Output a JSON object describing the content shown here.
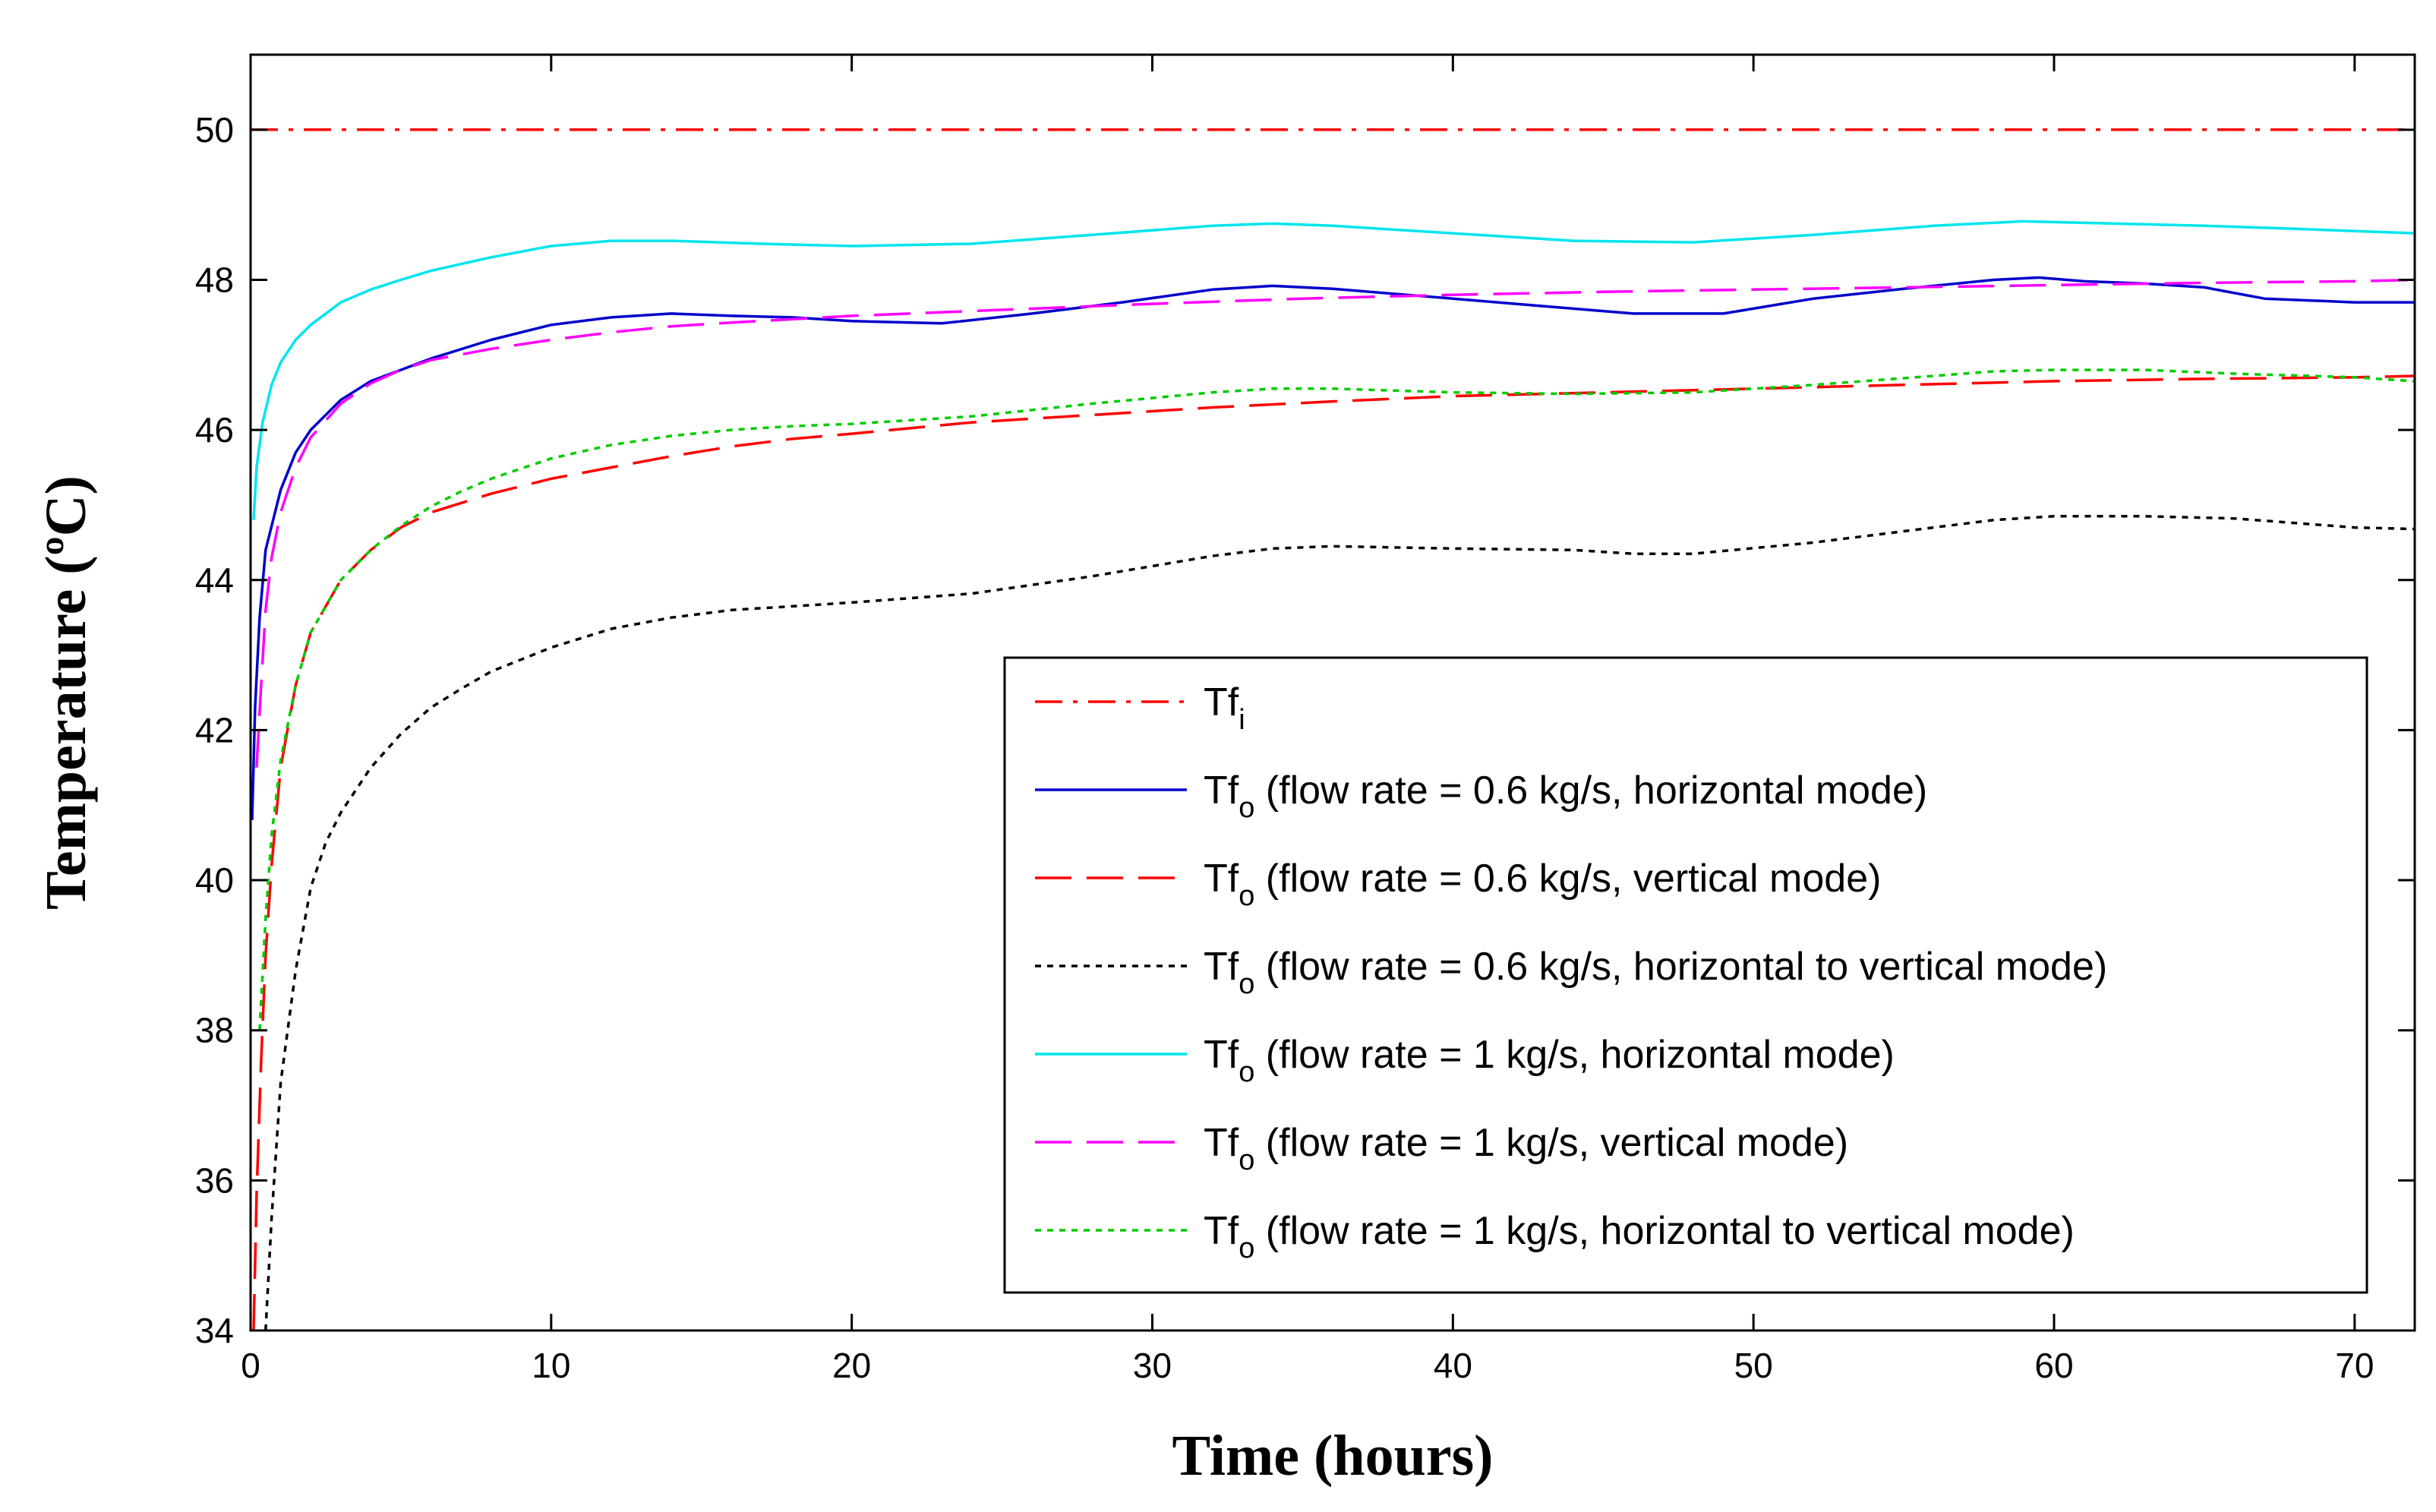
{
  "chart_data": {
    "type": "line",
    "title": "",
    "xlabel": "Time (hours)",
    "ylabel": "Temperature (ºC)",
    "xlim": [
      0,
      72
    ],
    "ylim": [
      34,
      51
    ],
    "xticks": [
      0,
      10,
      20,
      30,
      40,
      50,
      60,
      70
    ],
    "yticks": [
      34,
      36,
      38,
      40,
      42,
      44,
      46,
      48,
      50
    ],
    "grid": false,
    "legend_position": "bottom-right",
    "series": [
      {
        "name": "Tf_i",
        "legend_main": "Tf",
        "legend_sub": "i",
        "legend_rest": "",
        "color": "#ff0000",
        "dash": "dashdot",
        "x": [
          0,
          72
        ],
        "y": [
          50,
          50
        ]
      },
      {
        "name": "Tf_o (flow rate = 0.6 kg/s, horizontal mode)",
        "legend_main": "Tf",
        "legend_sub": "o",
        "legend_rest": " (flow rate = 0.6 kg/s, horizontal mode)",
        "color": "#0000cc",
        "dash": "solid",
        "x": [
          0.05,
          0.15,
          0.3,
          0.5,
          1,
          1.5,
          2,
          3,
          4,
          5,
          6,
          8,
          10,
          12,
          14,
          16,
          18,
          20,
          23,
          26,
          29,
          32,
          34,
          36,
          40,
          43,
          46,
          49,
          52,
          55,
          58,
          59.5,
          61,
          63,
          65,
          67,
          70,
          72
        ],
        "y": [
          40.8,
          42.3,
          43.5,
          44.4,
          45.2,
          45.7,
          46.0,
          46.4,
          46.65,
          46.8,
          46.95,
          47.2,
          47.4,
          47.5,
          47.55,
          47.52,
          47.5,
          47.45,
          47.42,
          47.55,
          47.7,
          47.87,
          47.92,
          47.88,
          47.75,
          47.65,
          47.55,
          47.55,
          47.75,
          47.88,
          48.0,
          48.03,
          47.98,
          47.95,
          47.9,
          47.75,
          47.7,
          47.7
        ]
      },
      {
        "name": "Tf_o (flow rate = 0.6 kg/s, vertical mode)",
        "legend_main": "Tf",
        "legend_sub": "o",
        "legend_rest": " (flow rate = 0.6 kg/s, vertical mode)",
        "color": "#ff0000",
        "dash": "dashed",
        "x": [
          0.1,
          0.2,
          0.35,
          0.5,
          0.7,
          1,
          1.5,
          2,
          3,
          4,
          5,
          6,
          8,
          10,
          12,
          14,
          16,
          18,
          20,
          24,
          28,
          32,
          36,
          40,
          45,
          50,
          55,
          60,
          65,
          70,
          72
        ],
        "y": [
          34.0,
          35.8,
          37.6,
          39.0,
          40.2,
          41.5,
          42.6,
          43.3,
          44.0,
          44.4,
          44.7,
          44.9,
          45.15,
          45.35,
          45.5,
          45.65,
          45.78,
          45.88,
          45.95,
          46.1,
          46.2,
          46.3,
          46.38,
          46.45,
          46.5,
          46.55,
          46.6,
          46.65,
          46.68,
          46.7,
          46.72
        ]
      },
      {
        "name": "Tf_o (flow rate = 0.6 kg/s, horizontal to vertical mode)",
        "legend_main": "Tf",
        "legend_sub": "o",
        "legend_rest": " (flow rate = 0.6 kg/s, horizontal to vertical mode)",
        "color": "#000000",
        "dash": "dotted",
        "x": [
          0.5,
          0.7,
          1,
          1.5,
          2,
          2.5,
          3,
          4,
          5,
          6,
          7,
          8,
          10,
          12,
          14,
          16,
          18,
          20,
          24,
          28,
          32,
          34,
          36,
          40,
          44,
          46,
          48,
          52,
          56,
          58,
          60,
          63,
          66,
          70,
          72
        ],
        "y": [
          34.0,
          35.5,
          37.3,
          38.8,
          39.9,
          40.5,
          40.9,
          41.5,
          41.95,
          42.3,
          42.55,
          42.78,
          43.1,
          43.35,
          43.5,
          43.6,
          43.65,
          43.7,
          43.82,
          44.05,
          44.32,
          44.42,
          44.45,
          44.42,
          44.4,
          44.35,
          44.35,
          44.5,
          44.7,
          44.8,
          44.85,
          44.85,
          44.82,
          44.7,
          44.68
        ]
      },
      {
        "name": "Tf_o (flow rate = 1 kg/s, horizontal mode)",
        "legend_main": "Tf",
        "legend_sub": "o",
        "legend_rest": " (flow rate = 1 kg/s, horizontal mode)",
        "color": "#00e5ee",
        "dash": "solid",
        "x": [
          0.1,
          0.2,
          0.4,
          0.7,
          1,
          1.5,
          2,
          3,
          4,
          5,
          6,
          8,
          10,
          12,
          14,
          17,
          20,
          24,
          28,
          32,
          34,
          36,
          40,
          44,
          48,
          52,
          56,
          59,
          62,
          65,
          68,
          70,
          72
        ],
        "y": [
          44.8,
          45.5,
          46.1,
          46.6,
          46.9,
          47.2,
          47.4,
          47.7,
          47.87,
          48.0,
          48.12,
          48.3,
          48.45,
          48.52,
          48.52,
          48.48,
          48.45,
          48.48,
          48.6,
          48.72,
          48.75,
          48.72,
          48.62,
          48.52,
          48.5,
          48.6,
          48.72,
          48.78,
          48.75,
          48.72,
          48.68,
          48.65,
          48.62
        ]
      },
      {
        "name": "Tf_o (flow rate = 1 kg/s, vertical mode)",
        "legend_main": "Tf",
        "legend_sub": "o",
        "legend_rest": " (flow rate = 1 kg/s, vertical mode)",
        "color": "#ff00ff",
        "dash": "dashed",
        "x": [
          0.2,
          0.35,
          0.5,
          0.7,
          1,
          1.5,
          2,
          3,
          4,
          5,
          6,
          8,
          10,
          12,
          14,
          16,
          20,
          25,
          30,
          35,
          40,
          45,
          50,
          55,
          60,
          65,
          70,
          72
        ],
        "y": [
          41.5,
          42.6,
          43.6,
          44.3,
          44.9,
          45.5,
          45.9,
          46.35,
          46.62,
          46.8,
          46.93,
          47.08,
          47.2,
          47.3,
          47.38,
          47.43,
          47.52,
          47.6,
          47.68,
          47.75,
          47.8,
          47.84,
          47.87,
          47.9,
          47.93,
          47.96,
          47.98,
          48.0
        ]
      },
      {
        "name": "Tf_o (flow rate = 1 kg/s, horizontal to vertical mode)",
        "legend_main": "Tf",
        "legend_sub": "o",
        "legend_rest": " (flow rate = 1 kg/s, horizontal to vertical mode)",
        "color": "#00cc00",
        "dash": "dotted",
        "x": [
          0.3,
          0.5,
          0.7,
          1,
          1.5,
          2,
          3,
          4,
          5,
          6,
          7,
          8,
          10,
          12,
          14,
          16,
          18,
          20,
          24,
          28,
          32,
          34,
          36,
          40,
          44,
          48,
          52,
          56,
          58,
          60,
          63,
          66,
          70,
          72
        ],
        "y": [
          38.0,
          39.5,
          40.6,
          41.6,
          42.6,
          43.3,
          44.0,
          44.4,
          44.72,
          44.98,
          45.18,
          45.35,
          45.62,
          45.8,
          45.92,
          46.0,
          46.05,
          46.08,
          46.18,
          46.35,
          46.5,
          46.55,
          46.55,
          46.5,
          46.48,
          46.5,
          46.6,
          46.72,
          46.78,
          46.8,
          46.8,
          46.75,
          46.7,
          46.65
        ]
      }
    ]
  }
}
